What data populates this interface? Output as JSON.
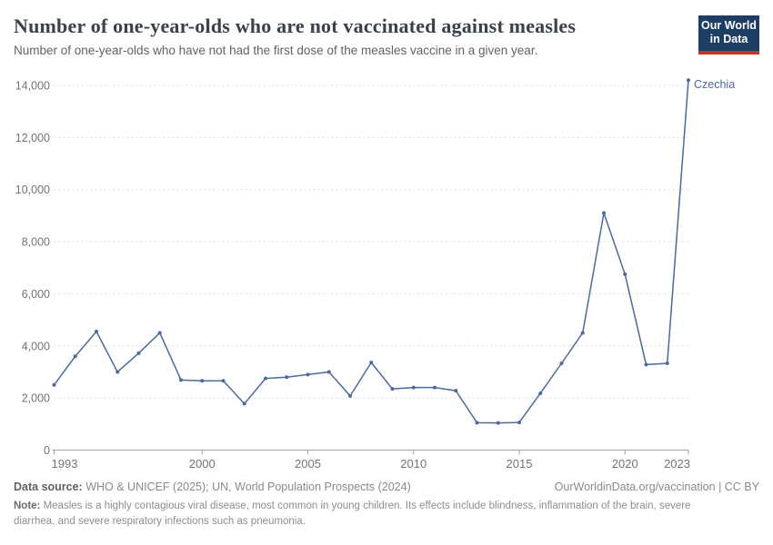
{
  "header": {
    "title": "Number of one-year-olds who are not vaccinated against measles",
    "subtitle": "Number of one-year-olds who have not had the first dose of the measles vaccine in a given year.",
    "logo": {
      "line1": "Our World",
      "line2": "in Data"
    }
  },
  "colors": {
    "line": "#4c6a9c",
    "entity_label": "#4c6a9c",
    "grid": "#dcdcdc",
    "axis": "#a3a3a3",
    "tick_text": "#747474",
    "logo_bg": "#1d3d63",
    "logo_accent": "#c8321f",
    "title_text": "#3a414a"
  },
  "chart_data": {
    "type": "line",
    "title": "Number of one-year-olds who are not vaccinated against measles",
    "xlabel": "",
    "ylabel": "",
    "x": [
      1993,
      1994,
      1995,
      1996,
      1997,
      1998,
      1999,
      2000,
      2001,
      2002,
      2003,
      2004,
      2005,
      2006,
      2007,
      2008,
      2009,
      2010,
      2011,
      2012,
      2013,
      2014,
      2015,
      2016,
      2017,
      2018,
      2019,
      2020,
      2021,
      2022,
      2023
    ],
    "series": [
      {
        "name": "Czechia",
        "values": [
          2500,
          3600,
          4550,
          3000,
          3720,
          4500,
          2690,
          2660,
          2660,
          1780,
          2750,
          2800,
          2900,
          3000,
          2080,
          3360,
          2350,
          2400,
          2400,
          2280,
          1050,
          1040,
          1060,
          2180,
          3330,
          4500,
          9100,
          6750,
          3280,
          3330,
          14200
        ]
      }
    ],
    "ylim": [
      0,
      14000
    ],
    "yticks": [
      0,
      2000,
      4000,
      6000,
      8000,
      10000,
      12000,
      14000
    ],
    "ytick_labels": [
      "0",
      "2,000",
      "4,000",
      "6,000",
      "8,000",
      "10,000",
      "12,000",
      "14,000"
    ],
    "xticks": [
      1993,
      2000,
      2005,
      2010,
      2015,
      2020,
      2023
    ],
    "xtick_labels": [
      "1993",
      "2000",
      "2005",
      "2010",
      "2015",
      "2020",
      "2023"
    ],
    "grid": "horizontal-dashed",
    "legend_position": "end-of-line"
  },
  "footer": {
    "datasource_label": "Data source:",
    "datasource": " WHO & UNICEF (2025); UN, World Population Prospects (2024)",
    "link": "OurWorldinData.org/vaccination | CC BY",
    "note_label": "Note:",
    "note": " Measles is a highly contagious viral disease, most common in young children. Its effects include blindness, inflammation of the brain, severe diarrhea, and severe respiratory infections such as pneumonia."
  }
}
